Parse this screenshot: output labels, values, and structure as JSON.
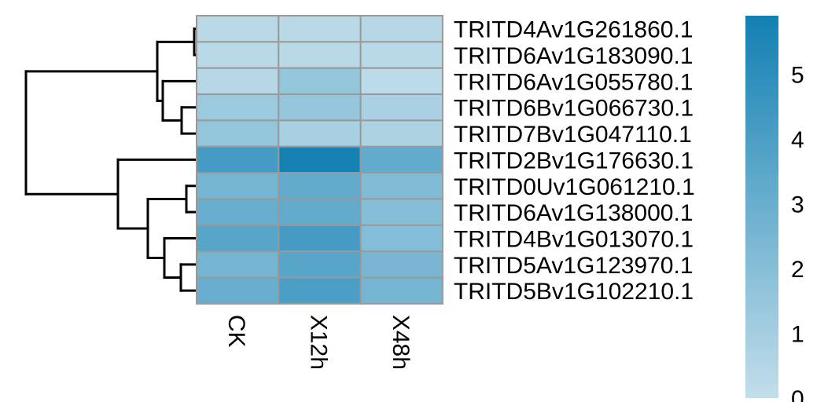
{
  "chart_data": {
    "type": "heatmap",
    "title": "",
    "xlabel": "",
    "ylabel": "",
    "columns": [
      "CK",
      "X12h",
      "X48h"
    ],
    "rows": [
      "TRITD4Av1G261860.1",
      "TRITD6Av1G183090.1",
      "TRITD6Av1G055780.1",
      "TRITD6Bv1G066730.1",
      "TRITD7Bv1G047110.1",
      "TRITD2Bv1G176630.1",
      "TRITD0Uv1G061210.1",
      "TRITD6Av1G138000.1",
      "TRITD4Bv1G013070.1",
      "TRITD5Av1G123970.1",
      "TRITD5Bv1G102210.1"
    ],
    "values": [
      [
        0.3,
        0.3,
        0.4
      ],
      [
        0.3,
        0.3,
        0.3
      ],
      [
        0.4,
        1.6,
        0.2
      ],
      [
        1.3,
        1.5,
        0.8
      ],
      [
        1.6,
        0.9,
        0.7
      ],
      [
        4.2,
        5.8,
        3.2
      ],
      [
        2.6,
        3.2,
        2.2
      ],
      [
        3.0,
        3.2,
        2.0
      ],
      [
        3.6,
        4.2,
        2.1
      ],
      [
        2.6,
        3.6,
        2.5
      ],
      [
        3.0,
        4.0,
        2.6
      ]
    ],
    "color_scale": {
      "min": 0,
      "max": 5.9,
      "low_color": "#C2DEEA",
      "high_color": "#1380B3",
      "ticks": [
        0,
        1,
        2,
        3,
        4,
        5
      ]
    },
    "cell_border_color": "#999999",
    "row_dendrogram": true,
    "column_dendrogram": false,
    "legend_placement": "right"
  }
}
